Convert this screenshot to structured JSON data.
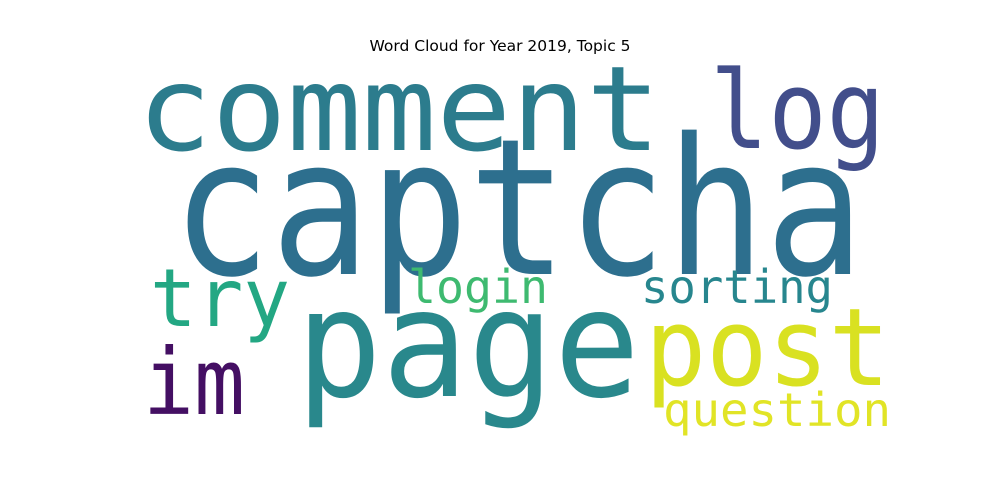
{
  "title": "Word Cloud for Year 2019, Topic 5",
  "words": [
    {
      "text": "captcha",
      "color": "#2d6f8e"
    },
    {
      "text": "comment",
      "color": "#2c7c8d"
    },
    {
      "text": "page",
      "color": "#29888c"
    },
    {
      "text": "log",
      "color": "#424e8b"
    },
    {
      "text": "post",
      "color": "#d9e121"
    },
    {
      "text": "try",
      "color": "#23a783"
    },
    {
      "text": "login",
      "color": "#3eba70"
    },
    {
      "text": "sorting",
      "color": "#27868e"
    },
    {
      "text": "im",
      "color": "#440f63"
    },
    {
      "text": "question",
      "color": "#e1e426"
    }
  ]
}
